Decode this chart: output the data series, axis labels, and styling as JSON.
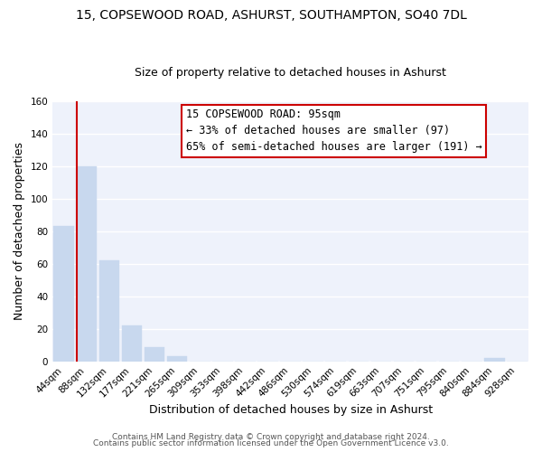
{
  "title": "15, COPSEWOOD ROAD, ASHURST, SOUTHAMPTON, SO40 7DL",
  "subtitle": "Size of property relative to detached houses in Ashurst",
  "xlabel": "Distribution of detached houses by size in Ashurst",
  "ylabel": "Number of detached properties",
  "bar_labels": [
    "44sqm",
    "88sqm",
    "132sqm",
    "177sqm",
    "221sqm",
    "265sqm",
    "309sqm",
    "353sqm",
    "398sqm",
    "442sqm",
    "486sqm",
    "530sqm",
    "574sqm",
    "619sqm",
    "663sqm",
    "707sqm",
    "751sqm",
    "795sqm",
    "840sqm",
    "884sqm",
    "928sqm"
  ],
  "bar_values": [
    83,
    120,
    62,
    22,
    9,
    3,
    0,
    0,
    0,
    0,
    0,
    0,
    0,
    0,
    0,
    0,
    0,
    0,
    0,
    2,
    0
  ],
  "bar_color": "#c8d8ee",
  "bar_edge_color": "#c8d8ee",
  "vline_color": "#cc0000",
  "ylim": [
    0,
    160
  ],
  "yticks": [
    0,
    20,
    40,
    60,
    80,
    100,
    120,
    140,
    160
  ],
  "annotation_line1": "15 COPSEWOOD ROAD: 95sqm",
  "annotation_line2": "← 33% of detached houses are smaller (97)",
  "annotation_line3": "65% of semi-detached houses are larger (191) →",
  "footer_line1": "Contains HM Land Registry data © Crown copyright and database right 2024.",
  "footer_line2": "Contains public sector information licensed under the Open Government Licence v3.0.",
  "background_color": "#ffffff",
  "plot_bg_color": "#eef2fb",
  "grid_color": "#ffffff",
  "title_fontsize": 10,
  "subtitle_fontsize": 9,
  "axis_label_fontsize": 9,
  "tick_fontsize": 7.5,
  "annotation_fontsize": 8.5,
  "footer_fontsize": 6.5
}
